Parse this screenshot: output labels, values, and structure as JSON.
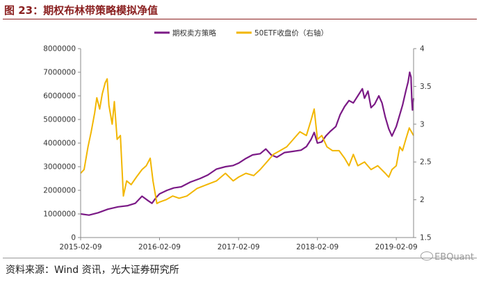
{
  "figure_title": "图 23：期权布林带策略模拟净值",
  "source_note": "资料来源：Wind 资讯，光大证券研究所",
  "watermark": "EBQuant",
  "chart_data": {
    "type": "line",
    "x_tick_labels": [
      "2015-02-09",
      "2016-02-09",
      "2017-02-09",
      "2018-02-09",
      "2019-02-09"
    ],
    "x_range": [
      "2015-02-09",
      "2019-04-30"
    ],
    "y_left": {
      "range": [
        0,
        8000000
      ],
      "ticks": [
        0,
        1000000,
        2000000,
        3000000,
        4000000,
        5000000,
        6000000,
        7000000,
        8000000
      ],
      "tick_labels": [
        "0",
        "1000000",
        "2000000",
        "3000000",
        "4000000",
        "5000000",
        "6000000",
        "7000000",
        "8000000"
      ]
    },
    "y_right": {
      "range": [
        1.5,
        4
      ],
      "ticks": [
        1.5,
        2,
        2.5,
        3,
        3.5,
        4
      ],
      "tick_labels": [
        "1.5",
        "2",
        "2.5",
        "3",
        "3.5",
        "4"
      ]
    },
    "grid": false,
    "legend_position": "top-center",
    "series": [
      {
        "name": "期权卖方策略",
        "axis": "left",
        "color": "#7b1a86",
        "points": [
          [
            "2015-02-09",
            1000000
          ],
          [
            "2015-03-20",
            950000
          ],
          [
            "2015-05-01",
            1050000
          ],
          [
            "2015-06-15",
            1200000
          ],
          [
            "2015-08-01",
            1300000
          ],
          [
            "2015-09-15",
            1350000
          ],
          [
            "2015-10-20",
            1450000
          ],
          [
            "2015-11-20",
            1750000
          ],
          [
            "2015-12-20",
            1550000
          ],
          [
            "2016-01-05",
            1450000
          ],
          [
            "2016-01-25",
            1700000
          ],
          [
            "2016-02-09",
            1850000
          ],
          [
            "2016-03-15",
            2000000
          ],
          [
            "2016-04-15",
            2100000
          ],
          [
            "2016-05-20",
            2150000
          ],
          [
            "2016-07-01",
            2350000
          ],
          [
            "2016-08-15",
            2500000
          ],
          [
            "2016-09-20",
            2650000
          ],
          [
            "2016-10-30",
            2900000
          ],
          [
            "2016-12-10",
            3000000
          ],
          [
            "2017-01-15",
            3050000
          ],
          [
            "2017-02-09",
            3150000
          ],
          [
            "2017-03-15",
            3350000
          ],
          [
            "2017-04-15",
            3500000
          ],
          [
            "2017-05-20",
            3550000
          ],
          [
            "2017-06-15",
            3750000
          ],
          [
            "2017-07-10",
            3500000
          ],
          [
            "2017-08-05",
            3400000
          ],
          [
            "2017-09-10",
            3600000
          ],
          [
            "2017-10-20",
            3650000
          ],
          [
            "2017-11-25",
            3700000
          ],
          [
            "2017-12-20",
            3850000
          ],
          [
            "2018-01-10",
            4150000
          ],
          [
            "2018-01-25",
            4450000
          ],
          [
            "2018-02-09",
            4000000
          ],
          [
            "2018-03-01",
            4050000
          ],
          [
            "2018-03-20",
            4300000
          ],
          [
            "2018-04-10",
            4500000
          ],
          [
            "2018-05-05",
            4700000
          ],
          [
            "2018-05-25",
            5200000
          ],
          [
            "2018-06-15",
            5550000
          ],
          [
            "2018-07-05",
            5800000
          ],
          [
            "2018-07-25",
            5700000
          ],
          [
            "2018-08-15",
            6000000
          ],
          [
            "2018-09-05",
            6300000
          ],
          [
            "2018-09-15",
            5900000
          ],
          [
            "2018-10-01",
            6200000
          ],
          [
            "2018-10-15",
            5500000
          ],
          [
            "2018-11-01",
            5650000
          ],
          [
            "2018-11-20",
            6000000
          ],
          [
            "2018-12-05",
            5700000
          ],
          [
            "2018-12-20",
            5100000
          ],
          [
            "2019-01-05",
            4600000
          ],
          [
            "2019-01-20",
            4300000
          ],
          [
            "2019-02-09",
            4700000
          ],
          [
            "2019-02-25",
            5200000
          ],
          [
            "2019-03-10",
            5600000
          ],
          [
            "2019-03-25",
            6200000
          ],
          [
            "2019-04-05",
            6600000
          ],
          [
            "2019-04-12",
            7000000
          ],
          [
            "2019-04-18",
            6800000
          ],
          [
            "2019-04-22",
            5800000
          ],
          [
            "2019-04-25",
            5400000
          ],
          [
            "2019-04-30",
            5900000
          ]
        ]
      },
      {
        "name": "50ETF收盘价（右轴）",
        "axis": "right",
        "color": "#f2b600",
        "points": [
          [
            "2015-02-09",
            2.35
          ],
          [
            "2015-02-25",
            2.4
          ],
          [
            "2015-03-15",
            2.7
          ],
          [
            "2015-03-30",
            2.9
          ],
          [
            "2015-04-15",
            3.15
          ],
          [
            "2015-04-25",
            3.35
          ],
          [
            "2015-05-08",
            3.2
          ],
          [
            "2015-05-20",
            3.4
          ],
          [
            "2015-06-03",
            3.55
          ],
          [
            "2015-06-12",
            3.6
          ],
          [
            "2015-06-20",
            3.25
          ],
          [
            "2015-07-05",
            3.0
          ],
          [
            "2015-07-15",
            3.3
          ],
          [
            "2015-07-28",
            2.8
          ],
          [
            "2015-08-12",
            2.85
          ],
          [
            "2015-08-26",
            2.05
          ],
          [
            "2015-09-10",
            2.25
          ],
          [
            "2015-10-01",
            2.2
          ],
          [
            "2015-10-25",
            2.3
          ],
          [
            "2015-11-20",
            2.4
          ],
          [
            "2015-12-10",
            2.45
          ],
          [
            "2015-12-28",
            2.55
          ],
          [
            "2016-01-10",
            2.25
          ],
          [
            "2016-01-28",
            1.95
          ],
          [
            "2016-02-09",
            1.97
          ],
          [
            "2016-03-10",
            2.0
          ],
          [
            "2016-04-10",
            2.05
          ],
          [
            "2016-05-10",
            2.02
          ],
          [
            "2016-06-15",
            2.05
          ],
          [
            "2016-08-01",
            2.15
          ],
          [
            "2016-09-15",
            2.2
          ],
          [
            "2016-10-30",
            2.25
          ],
          [
            "2016-12-10",
            2.35
          ],
          [
            "2017-01-15",
            2.25
          ],
          [
            "2017-02-09",
            2.3
          ],
          [
            "2017-03-15",
            2.35
          ],
          [
            "2017-04-20",
            2.32
          ],
          [
            "2017-05-20",
            2.4
          ],
          [
            "2017-06-20",
            2.5
          ],
          [
            "2017-07-20",
            2.6
          ],
          [
            "2017-08-20",
            2.65
          ],
          [
            "2017-09-20",
            2.7
          ],
          [
            "2017-10-20",
            2.8
          ],
          [
            "2017-11-20",
            2.9
          ],
          [
            "2017-12-20",
            2.85
          ],
          [
            "2018-01-10",
            3.05
          ],
          [
            "2018-01-25",
            3.2
          ],
          [
            "2018-02-09",
            2.8
          ],
          [
            "2018-03-01",
            2.85
          ],
          [
            "2018-03-25",
            2.7
          ],
          [
            "2018-04-20",
            2.65
          ],
          [
            "2018-05-20",
            2.65
          ],
          [
            "2018-06-15",
            2.55
          ],
          [
            "2018-07-05",
            2.45
          ],
          [
            "2018-07-25",
            2.6
          ],
          [
            "2018-08-15",
            2.45
          ],
          [
            "2018-09-15",
            2.5
          ],
          [
            "2018-10-15",
            2.4
          ],
          [
            "2018-11-15",
            2.45
          ],
          [
            "2018-12-20",
            2.35
          ],
          [
            "2019-01-05",
            2.3
          ],
          [
            "2019-01-20",
            2.4
          ],
          [
            "2019-02-09",
            2.45
          ],
          [
            "2019-02-25",
            2.7
          ],
          [
            "2019-03-10",
            2.65
          ],
          [
            "2019-03-25",
            2.8
          ],
          [
            "2019-04-10",
            2.95
          ],
          [
            "2019-04-30",
            2.85
          ]
        ]
      }
    ]
  }
}
